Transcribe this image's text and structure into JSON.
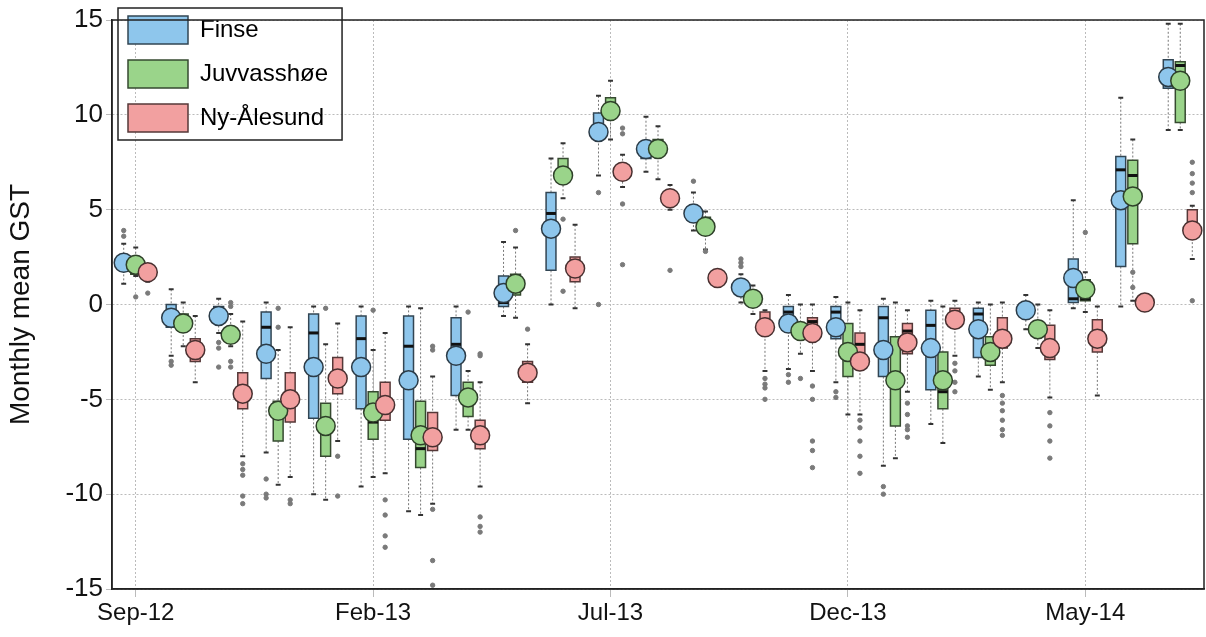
{
  "chart_data": {
    "type": "box",
    "ylabel": "Monthly mean GST",
    "categories": [
      "Sep-12",
      null,
      null,
      null,
      null,
      "Feb-13",
      null,
      null,
      null,
      null,
      "Jul-13",
      null,
      null,
      null,
      null,
      "Dec-13",
      null,
      null,
      null,
      null,
      "May-14",
      null,
      null
    ],
    "ylim": [
      -15,
      15
    ],
    "yticks": [
      -15,
      -10,
      -5,
      0,
      5,
      10,
      15
    ],
    "grid": true,
    "legend": "top left",
    "series": [
      {
        "name": "Finse",
        "color": "#8ec6ec",
        "boxes": [
          {
            "low": 1.1,
            "q1": 1.8,
            "median": 1.9,
            "q3": 2.4,
            "high": 3.2,
            "mean": 2.2,
            "outliers": [
              3.6,
              3.9
            ]
          },
          {
            "low": -2.7,
            "q1": -1.2,
            "median": -0.5,
            "q3": 0.0,
            "high": 0.8,
            "mean": -0.7,
            "outliers": [
              -3.0,
              -3.2
            ]
          },
          {
            "low": -1.5,
            "q1": -0.9,
            "median": -0.3,
            "q3": -0.1,
            "high": 0.3,
            "mean": -0.6,
            "outliers": [
              -2.0,
              -2.3,
              -3.3
            ]
          },
          {
            "low": -7.8,
            "q1": -3.9,
            "median": -1.2,
            "q3": -0.4,
            "high": 0.1,
            "mean": -2.6,
            "outliers": [
              -9.2,
              -10.0,
              -10.2
            ]
          },
          {
            "low": -10.0,
            "q1": -6.0,
            "median": -1.5,
            "q3": -0.5,
            "high": -0.1,
            "mean": -3.3
          },
          {
            "low": -9.6,
            "q1": -5.5,
            "median": -1.8,
            "q3": -0.6,
            "high": -0.1,
            "mean": -3.3
          },
          {
            "low": -10.9,
            "q1": -7.1,
            "median": -2.2,
            "q3": -0.6,
            "high": -0.1,
            "mean": -4.0
          },
          {
            "low": -6.6,
            "q1": -4.8,
            "median": -2.1,
            "q3": -0.7,
            "high": -0.1,
            "mean": -2.7
          },
          {
            "low": -0.6,
            "q1": -0.1,
            "median": 0.1,
            "q3": 1.5,
            "high": 3.3,
            "mean": 0.6
          },
          {
            "low": 0.0,
            "q1": 1.8,
            "median": 4.8,
            "q3": 5.9,
            "high": 7.7,
            "mean": 4.0
          },
          {
            "low": 6.8,
            "q1": 8.7,
            "median": 9.2,
            "q3": 10.1,
            "high": 11.0,
            "mean": 9.1,
            "outliers": [
              5.9,
              0.0
            ]
          },
          {
            "low": 7.0,
            "q1": 7.7,
            "median": 8.1,
            "q3": 8.6,
            "high": 9.9,
            "mean": 8.2
          },
          {
            "low": 3.9,
            "q1": 4.4,
            "median": 4.6,
            "q3": 4.9,
            "high": 5.9,
            "mean": 4.8,
            "outliers": [
              6.5
            ]
          },
          {
            "low": 0.1,
            "q1": 0.6,
            "median": 0.8,
            "q3": 1.1,
            "high": 1.6,
            "mean": 0.9,
            "outliers": [
              2.0,
              2.2,
              2.4
            ]
          },
          {
            "low": -3.4,
            "q1": -1.4,
            "median": -0.4,
            "q3": -0.1,
            "high": 0.5,
            "mean": -1.0,
            "outliers": [
              -3.7,
              -4.1
            ]
          },
          {
            "low": -4.1,
            "q1": -1.8,
            "median": -0.4,
            "q3": -0.1,
            "high": 0.4,
            "mean": -1.2,
            "outliers": [
              -4.6,
              -4.9
            ]
          },
          {
            "low": -8.5,
            "q1": -3.8,
            "median": -0.7,
            "q3": -0.1,
            "high": 0.3,
            "mean": -2.4,
            "outliers": [
              -9.6,
              -10.0
            ]
          },
          {
            "low": -6.3,
            "q1": -4.5,
            "median": -1.1,
            "q3": -0.3,
            "high": 0.2,
            "mean": -2.3
          },
          {
            "low": -3.8,
            "q1": -2.8,
            "median": -0.5,
            "q3": -0.2,
            "high": 0.1,
            "mean": -1.3
          },
          {
            "low": -1.3,
            "q1": -0.6,
            "median": -0.3,
            "q3": -0.1,
            "high": 0.5,
            "mean": -0.3
          },
          {
            "low": -0.2,
            "q1": 0.1,
            "median": 0.3,
            "q3": 2.4,
            "high": 5.5,
            "mean": 1.4
          },
          {
            "low": -0.1,
            "q1": 2.0,
            "median": 7.1,
            "q3": 7.8,
            "high": 10.9,
            "mean": 5.5
          },
          {
            "low": 9.2,
            "q1": 11.4,
            "median": 11.9,
            "q3": 12.9,
            "high": 14.8,
            "mean": 12.0
          }
        ]
      },
      {
        "name": "Juvvasshøe",
        "color": "#9ad48a",
        "boxes": [
          {
            "low": 1.5,
            "q1": 1.6,
            "median": 1.7,
            "q3": 2.3,
            "high": 3.0,
            "mean": 2.1,
            "outliers": [
              0.4
            ]
          },
          {
            "low": -2.2,
            "q1": -1.4,
            "median": -0.7,
            "q3": -0.5,
            "high": 0.1,
            "mean": -1.0
          },
          {
            "low": -2.2,
            "q1": -1.9,
            "median": -1.6,
            "q3": -1.3,
            "high": -0.5,
            "mean": -1.6,
            "outliers": [
              0.1,
              -0.1,
              -3.0,
              -3.3
            ]
          },
          {
            "low": -9.5,
            "q1": -7.2,
            "median": -5.4,
            "q3": -5.1,
            "high": -2.4,
            "mean": -5.6,
            "outliers": [
              -0.2,
              -1.2
            ]
          },
          {
            "low": -10.3,
            "q1": -8.0,
            "median": -6.8,
            "q3": -5.2,
            "high": -2.1,
            "mean": -6.4,
            "outliers": [
              -0.2
            ]
          },
          {
            "low": -9.1,
            "q1": -7.1,
            "median": -6.2,
            "q3": -4.6,
            "high": -2.4,
            "mean": -5.7,
            "outliers": [
              -0.3
            ]
          },
          {
            "low": -11.1,
            "q1": -8.6,
            "median": -7.6,
            "q3": -5.1,
            "high": -0.2,
            "mean": -6.9
          },
          {
            "low": -6.6,
            "q1": -5.9,
            "median": -4.9,
            "q3": -4.1,
            "high": -3.5,
            "mean": -4.9,
            "outliers": [
              -0.4
            ]
          },
          {
            "low": -0.7,
            "q1": 0.5,
            "median": 1.2,
            "q3": 1.6,
            "high": 3.0,
            "mean": 1.1,
            "outliers": [
              3.9
            ]
          },
          {
            "low": 5.6,
            "q1": 6.5,
            "median": 7.1,
            "q3": 7.7,
            "high": 8.5,
            "mean": 6.8,
            "outliers": [
              4.5,
              0.7
            ]
          },
          {
            "low": 8.7,
            "q1": 9.8,
            "median": 10.6,
            "q3": 10.9,
            "high": 11.8,
            "mean": 10.2
          },
          {
            "low": 6.6,
            "q1": 7.8,
            "median": 8.1,
            "q3": 8.7,
            "high": 9.4,
            "mean": 8.2
          },
          {
            "low": 2.9,
            "q1": 3.9,
            "median": 4.2,
            "q3": 4.6,
            "high": 4.9,
            "mean": 4.1,
            "outliers": [
              2.8
            ]
          },
          {
            "low": -0.5,
            "q1": 0.1,
            "median": 0.3,
            "q3": 0.5,
            "high": 1.0,
            "mean": 0.3
          },
          {
            "low": -2.6,
            "q1": -1.8,
            "median": -1.5,
            "q3": -1.1,
            "high": 0.0,
            "mean": -1.4,
            "outliers": [
              -3.9
            ]
          },
          {
            "low": -5.8,
            "q1": -3.8,
            "median": -2.5,
            "q3": -1.0,
            "high": 0.1,
            "mean": -2.5
          },
          {
            "low": -8.1,
            "q1": -6.4,
            "median": -4.0,
            "q3": -1.7,
            "high": 0.1,
            "mean": -4.0
          },
          {
            "low": -7.3,
            "q1": -5.5,
            "median": -4.6,
            "q3": -2.5,
            "high": -0.1,
            "mean": -4.0
          },
          {
            "low": -4.5,
            "q1": -3.2,
            "median": -2.5,
            "q3": -1.7,
            "high": 0.0,
            "mean": -2.5
          },
          {
            "low": -2.3,
            "q1": -1.6,
            "median": -1.2,
            "q3": -0.9,
            "high": 0.0,
            "mean": -1.3
          },
          {
            "low": -0.4,
            "q1": 0.2,
            "median": 0.3,
            "q3": 1.3,
            "high": 1.7,
            "mean": 0.8,
            "outliers": [
              3.8
            ]
          },
          {
            "low": 0.2,
            "q1": 3.2,
            "median": 6.8,
            "q3": 7.6,
            "high": 8.7,
            "mean": 5.7,
            "outliers": [
              1.7,
              0.9
            ]
          },
          {
            "low": 9.2,
            "q1": 9.6,
            "median": 12.6,
            "q3": 12.8,
            "high": 14.8,
            "mean": 11.8
          }
        ]
      },
      {
        "name": "Ny-Ålesund",
        "color": "#f2a0a0",
        "boxes": [
          {
            "low": 1.2,
            "q1": 1.5,
            "median": 1.6,
            "q3": 1.8,
            "high": 1.9,
            "mean": 1.7,
            "outliers": [
              0.6
            ]
          },
          {
            "low": -4.1,
            "q1": -3.0,
            "median": -2.6,
            "q3": -1.8,
            "high": -0.6,
            "mean": -2.4
          },
          {
            "low": -8.0,
            "q1": -5.5,
            "median": -4.4,
            "q3": -3.6,
            "high": -0.9,
            "mean": -4.7,
            "outliers": [
              -8.4,
              -8.7,
              -9.0,
              -10.1,
              -10.5
            ]
          },
          {
            "low": -9.1,
            "q1": -6.2,
            "median": -5.0,
            "q3": -3.6,
            "high": -1.2,
            "mean": -5.0,
            "outliers": [
              -10.3,
              -10.5
            ]
          },
          {
            "low": -7.2,
            "q1": -4.7,
            "median": -3.9,
            "q3": -2.8,
            "high": -1.0,
            "mean": -3.9,
            "outliers": [
              -8.0,
              -10.1
            ]
          },
          {
            "low": -8.9,
            "q1": -6.1,
            "median": -5.3,
            "q3": -4.1,
            "high": -1.5,
            "mean": -5.3,
            "outliers": [
              -10.3,
              -11.1,
              -12.2,
              -12.8
            ]
          },
          {
            "low": -10.5,
            "q1": -7.7,
            "median": -7.2,
            "q3": -5.7,
            "high": -3.8,
            "mean": -7.0,
            "outliers": [
              -2.2,
              -2.4,
              -10.8,
              -13.5,
              -14.8
            ]
          },
          {
            "low": -9.6,
            "q1": -7.6,
            "median": -6.9,
            "q3": -6.1,
            "high": -4.1,
            "mean": -6.9,
            "outliers": [
              -2.6,
              -2.7,
              -11.2,
              -11.7,
              -12.0
            ]
          },
          {
            "low": -5.2,
            "q1": -4.1,
            "median": -3.6,
            "q3": -3.0,
            "high": -2.1,
            "mean": -3.6,
            "outliers": [
              -1.3
            ]
          },
          {
            "low": -0.2,
            "q1": 1.2,
            "median": 1.9,
            "q3": 2.5,
            "high": 4.2,
            "mean": 1.9
          },
          {
            "low": 6.2,
            "q1": 6.9,
            "median": 7.0,
            "q3": 7.2,
            "high": 7.9,
            "mean": 7.0,
            "outliers": [
              9.3,
              9.0,
              5.3,
              2.1
            ]
          },
          {
            "low": 5.0,
            "q1": 5.3,
            "median": 5.6,
            "q3": 5.8,
            "high": 6.3,
            "mean": 5.6,
            "outliers": [
              1.8
            ]
          },
          {
            "low": 1.2,
            "q1": 1.3,
            "median": 1.4,
            "q3": 1.6,
            "high": 1.7,
            "mean": 1.4
          },
          {
            "low": -3.5,
            "q1": -1.6,
            "median": -0.9,
            "q3": -0.4,
            "high": -0.3,
            "mean": -1.2,
            "outliers": [
              -3.9,
              -4.2,
              -4.4,
              -5.0
            ]
          },
          {
            "low": -3.5,
            "q1": -1.8,
            "median": -0.9,
            "q3": -0.7,
            "high": 0.0,
            "mean": -1.5,
            "outliers": [
              -4.3,
              -5.0,
              -7.2,
              -7.7,
              -8.6
            ]
          },
          {
            "low": -5.8,
            "q1": -3.2,
            "median": -2.1,
            "q3": -1.5,
            "high": -0.3,
            "mean": -3.0,
            "outliers": [
              -6.1,
              -6.5,
              -7.2,
              -8.0,
              -8.9
            ]
          },
          {
            "low": -4.6,
            "q1": -2.6,
            "median": -1.4,
            "q3": -1.0,
            "high": -0.3,
            "mean": -2.0,
            "outliers": [
              -5.2,
              -5.8,
              -6.4,
              -6.6,
              -7.0
            ]
          },
          {
            "low": -2.7,
            "q1": -1.0,
            "median": -0.5,
            "q3": -0.2,
            "high": 0.2,
            "mean": -0.8,
            "outliers": [
              -3.1,
              -3.5,
              -4.1,
              -4.6
            ]
          },
          {
            "low": -4.1,
            "q1": -2.3,
            "median": -2.2,
            "q3": -0.7,
            "high": 0.1,
            "mean": -1.8,
            "outliers": [
              -4.8,
              -5.2,
              -5.6,
              -6.1,
              -6.6,
              -6.9
            ]
          },
          {
            "low": -4.9,
            "q1": -2.9,
            "median": -2.3,
            "q3": -1.1,
            "high": -0.3,
            "mean": -2.3,
            "outliers": [
              -5.7,
              -6.4,
              -7.2,
              -8.1
            ]
          },
          {
            "low": -4.8,
            "q1": -2.5,
            "median": -1.7,
            "q3": -0.8,
            "high": -0.1,
            "mean": -1.8
          },
          {
            "low": -0.2,
            "q1": -0.1,
            "median": 0.1,
            "q3": 0.3,
            "high": 0.4,
            "mean": 0.1
          },
          {
            "low": 2.4,
            "q1": 3.5,
            "median": 3.9,
            "q3": 5.0,
            "high": 5.2,
            "mean": 3.9,
            "outliers": [
              7.5,
              6.9,
              6.4,
              5.9,
              0.2
            ]
          }
        ]
      }
    ]
  }
}
